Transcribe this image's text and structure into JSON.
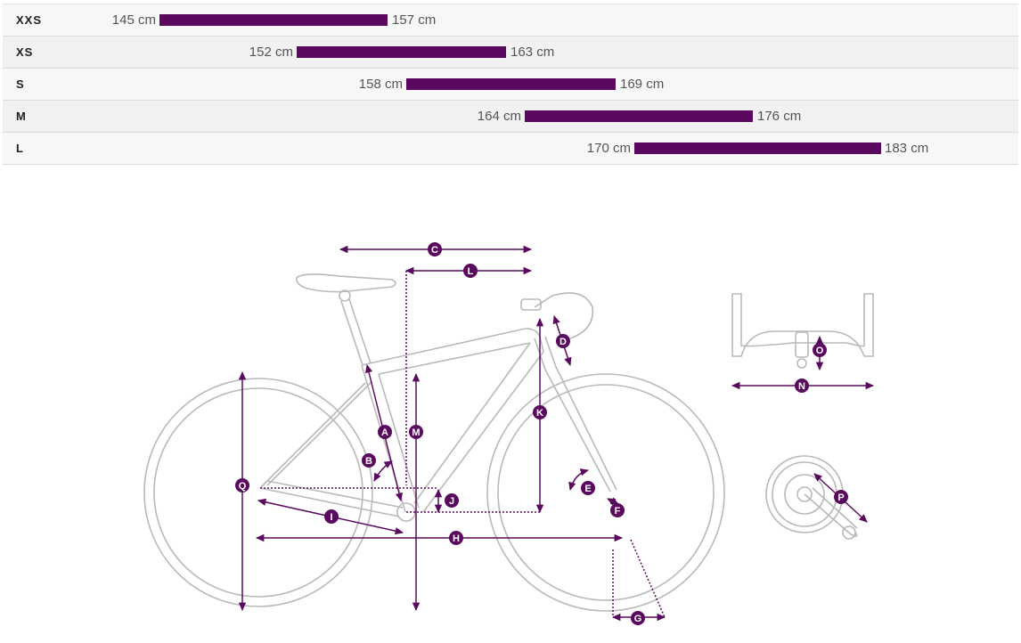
{
  "size_rows": [
    {
      "size": "XXS",
      "min": "145 cm",
      "max": "157 cm"
    },
    {
      "size": "XS",
      "min": "152 cm",
      "max": "163 cm"
    },
    {
      "size": "S",
      "min": "158 cm",
      "max": "169 cm"
    },
    {
      "size": "M",
      "min": "164 cm",
      "max": "176 cm"
    },
    {
      "size": "L",
      "min": "170 cm",
      "max": "183 cm"
    }
  ],
  "colors": {
    "accent": "#5a0a5e",
    "frame_line": "#b9b9b9"
  },
  "geometry_labels": [
    "A",
    "B",
    "C",
    "D",
    "E",
    "F",
    "G",
    "H",
    "I",
    "J",
    "K",
    "L",
    "M",
    "N",
    "O",
    "P",
    "Q"
  ]
}
